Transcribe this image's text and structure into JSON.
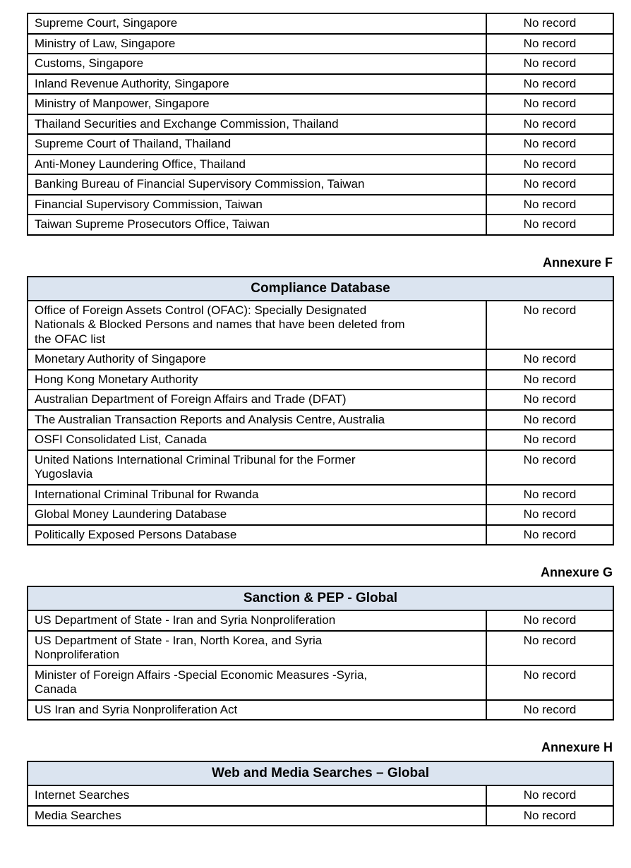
{
  "colors": {
    "header_bg": "#dbe4f0",
    "border": "#000000",
    "text": "#000000"
  },
  "tables": [
    {
      "annexure": null,
      "header": null,
      "rows": [
        {
          "source": "Supreme Court, Singapore",
          "result": "No record"
        },
        {
          "source": "Ministry of Law, Singapore",
          "result": "No record"
        },
        {
          "source": "Customs, Singapore",
          "result": "No record"
        },
        {
          "source": "Inland Revenue Authority, Singapore",
          "result": "No record"
        },
        {
          "source": "Ministry of Manpower, Singapore",
          "result": "No record"
        },
        {
          "source": "Thailand Securities and Exchange Commission, Thailand",
          "result": "No record"
        },
        {
          "source": "Supreme Court of Thailand, Thailand",
          "result": "No record"
        },
        {
          "source": "Anti-Money Laundering Office, Thailand",
          "result": "No record"
        },
        {
          "source": "Banking Bureau of Financial Supervisory Commission, Taiwan",
          "result": "No record"
        },
        {
          "source": "Financial Supervisory Commission, Taiwan",
          "result": "No record"
        },
        {
          "source": "Taiwan Supreme Prosecutors Office, Taiwan",
          "result": "No record"
        }
      ]
    },
    {
      "annexure": "Annexure F",
      "header": "Compliance Database",
      "rows": [
        {
          "source": "Office of Foreign Assets Control (OFAC): Specially Designated\nNationals & Blocked Persons and names that have been deleted from\nthe OFAC list",
          "result": "No record"
        },
        {
          "source": "Monetary Authority of Singapore",
          "result": "No record"
        },
        {
          "source": "Hong Kong Monetary Authority",
          "result": "No record"
        },
        {
          "source": "Australian Department of Foreign Affairs and Trade (DFAT)",
          "result": "No record"
        },
        {
          "source": "The Australian Transaction Reports and Analysis Centre, Australia",
          "result": "No record"
        },
        {
          "source": "OSFI Consolidated List, Canada",
          "result": "No record"
        },
        {
          "source": "United Nations International Criminal Tribunal for the Former\nYugoslavia",
          "result": "No record"
        },
        {
          "source": "International Criminal Tribunal for Rwanda",
          "result": "No record"
        },
        {
          "source": "Global Money Laundering Database",
          "result": "No record"
        },
        {
          "source": "Politically Exposed Persons Database",
          "result": "No record"
        }
      ]
    },
    {
      "annexure": "Annexure G",
      "header": "Sanction & PEP - Global",
      "rows": [
        {
          "source": "US Department of State - Iran and Syria Nonproliferation",
          "result": "No record"
        },
        {
          "source": "US Department of State - Iran, North Korea, and Syria\nNonproliferation",
          "result": "No record"
        },
        {
          "source": "Minister of Foreign Affairs -Special Economic Measures -Syria,\nCanada",
          "result": "No record"
        },
        {
          "source": "US Iran and Syria Nonproliferation Act",
          "result": "No record"
        }
      ]
    },
    {
      "annexure": "Annexure H",
      "header": "Web and Media Searches – Global",
      "rows": [
        {
          "source": "Internet Searches",
          "result": "No record"
        },
        {
          "source": "Media Searches",
          "result": "No record"
        }
      ]
    }
  ]
}
